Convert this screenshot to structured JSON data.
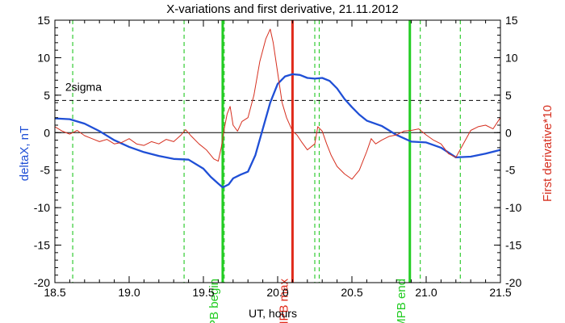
{
  "chart_data": {
    "type": "line",
    "title": "X-variations and first derivative, 21.11.2012",
    "xlabel": "UT, hours",
    "ylabel_left": "deltaX, nT",
    "ylabel_right": "First derivative*10",
    "xlim": [
      18.5,
      21.5
    ],
    "ylim_left": [
      -20,
      15
    ],
    "ylim_right": [
      -20,
      15
    ],
    "x_ticks": [
      "18.5",
      "19.0",
      "19.5",
      "20.0",
      "20.5",
      "21.0",
      "21.5"
    ],
    "x_tick_values": [
      18.5,
      19.0,
      19.5,
      20.0,
      20.5,
      21.0,
      21.5
    ],
    "y_ticks": [
      "15",
      "10",
      "5",
      "0",
      "-5",
      "-10",
      "-15",
      "-20"
    ],
    "y_tick_values": [
      15,
      10,
      5,
      0,
      -5,
      -10,
      -15,
      -20
    ],
    "threshold": {
      "label": "2sigma",
      "value": 4.3,
      "color": "#000000"
    },
    "zero_line": 0,
    "colors": {
      "deltaX": "#1f4fd6",
      "derivative": "#d62f1f",
      "mpb": "#22cc22",
      "max": "#e02a1a",
      "dashed": "#33cc33"
    },
    "series": [
      {
        "name": "deltaX, nT",
        "axis": "left",
        "x": [
          18.5,
          18.6,
          18.7,
          18.8,
          18.9,
          19.0,
          19.1,
          19.2,
          19.3,
          19.4,
          19.5,
          19.55,
          19.6,
          19.63,
          19.67,
          19.7,
          19.75,
          19.8,
          19.85,
          19.9,
          19.95,
          20.0,
          20.05,
          20.1,
          20.15,
          20.2,
          20.25,
          20.3,
          20.35,
          20.4,
          20.45,
          20.5,
          20.55,
          20.6,
          20.7,
          20.8,
          20.9,
          21.0,
          21.1,
          21.2,
          21.3,
          21.4,
          21.5
        ],
        "values": [
          1.9,
          1.8,
          1.2,
          0.2,
          -1.0,
          -1.9,
          -2.6,
          -3.1,
          -3.5,
          -3.6,
          -4.8,
          -5.9,
          -6.8,
          -7.3,
          -6.9,
          -6.1,
          -5.6,
          -5.2,
          -3.0,
          0.5,
          4.0,
          6.5,
          7.5,
          7.8,
          7.7,
          7.3,
          7.2,
          7.3,
          6.9,
          5.9,
          4.5,
          3.4,
          2.4,
          1.6,
          0.9,
          -0.3,
          -1.2,
          -1.3,
          -2.0,
          -3.3,
          -3.2,
          -2.8,
          -2.3
        ]
      },
      {
        "name": "First derivative*10",
        "axis": "right",
        "x": [
          18.5,
          18.55,
          18.6,
          18.65,
          18.7,
          18.75,
          18.8,
          18.85,
          18.9,
          18.95,
          19.0,
          19.05,
          19.1,
          19.15,
          19.2,
          19.25,
          19.3,
          19.35,
          19.38,
          19.42,
          19.47,
          19.52,
          19.57,
          19.6,
          19.62,
          19.64,
          19.66,
          19.68,
          19.7,
          19.73,
          19.76,
          19.8,
          19.84,
          19.88,
          19.92,
          19.95,
          19.97,
          20.0,
          20.03,
          20.06,
          20.1,
          20.13,
          20.16,
          20.2,
          20.25,
          20.27,
          20.3,
          20.33,
          20.36,
          20.4,
          20.45,
          20.5,
          20.55,
          20.6,
          20.63,
          20.66,
          20.7,
          20.75,
          20.8,
          20.85,
          20.9,
          20.95,
          21.0,
          21.05,
          21.1,
          21.15,
          21.2,
          21.25,
          21.3,
          21.35,
          21.4,
          21.45,
          21.5
        ],
        "values": [
          0.8,
          0.2,
          -0.2,
          0.3,
          -0.4,
          -0.8,
          -1.2,
          -0.9,
          -1.5,
          -1.3,
          -0.8,
          -1.5,
          -1.7,
          -1.2,
          -1.5,
          -0.9,
          -1.2,
          -0.3,
          0.4,
          -0.5,
          -1.5,
          -2.3,
          -3.5,
          -3.8,
          -2.0,
          0.5,
          2.5,
          3.5,
          1.0,
          0.2,
          1.5,
          2.0,
          5.0,
          9.5,
          12.5,
          13.8,
          12.0,
          8.0,
          4.0,
          2.0,
          0.2,
          -0.3,
          -1.2,
          -2.3,
          -1.5,
          0.8,
          0.2,
          -1.5,
          -3.0,
          -4.5,
          -5.5,
          -6.2,
          -5.0,
          -2.5,
          -0.8,
          -1.5,
          -1.0,
          -0.5,
          -0.3,
          0.2,
          0.3,
          0.5,
          -0.3,
          -1.0,
          -1.5,
          -2.8,
          -3.3,
          -1.5,
          0.3,
          0.8,
          1.0,
          0.5,
          2.0
        ]
      }
    ],
    "vertical_markers": [
      {
        "x": 19.63,
        "label": "MPB begin",
        "color": "#22cc22",
        "style": "solid"
      },
      {
        "x": 20.1,
        "label": "MPB max",
        "color": "#e02a1a",
        "style": "solid"
      },
      {
        "x": 20.89,
        "label": "MPB end",
        "color": "#22cc22",
        "style": "solid"
      }
    ],
    "dashed_markers": [
      18.62,
      19.37,
      19.64,
      20.25,
      20.28,
      20.96,
      21.23
    ]
  }
}
